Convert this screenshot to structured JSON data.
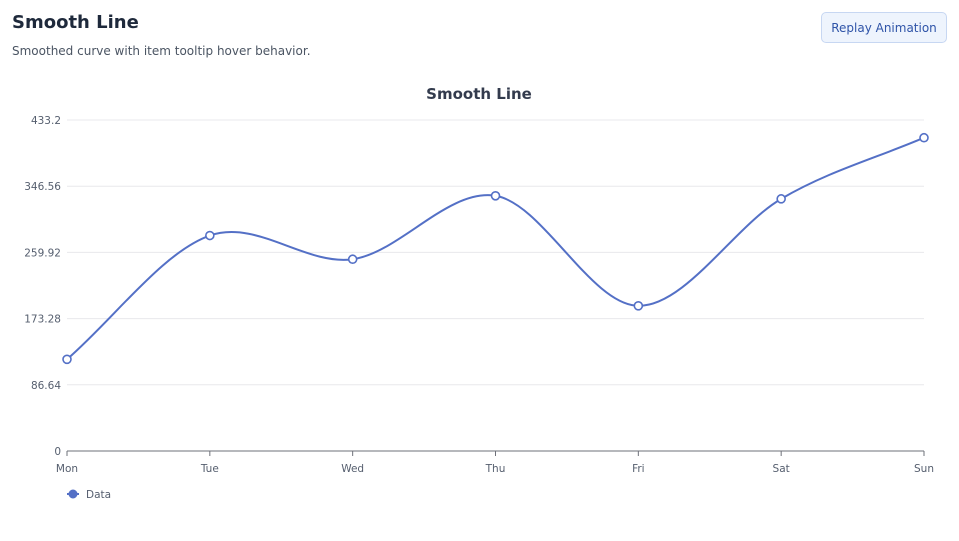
{
  "header": {
    "title": "Smooth Line",
    "subtitle": "Smoothed curve with item tooltip hover behavior.",
    "replay_label": "Replay Animation"
  },
  "colors": {
    "series": "#5470c6",
    "axis": "#6e7079",
    "grid": "#e8e8ec"
  },
  "chart_data": {
    "type": "line",
    "smooth": true,
    "title": "Smooth Line",
    "categories": [
      "Mon",
      "Tue",
      "Wed",
      "Thu",
      "Fri",
      "Sat",
      "Sun"
    ],
    "series": [
      {
        "name": "Data",
        "values": [
          120,
          282,
          251,
          334,
          190,
          330,
          410
        ]
      }
    ],
    "ylim": [
      0,
      433.2
    ],
    "yticks": [
      "0",
      "86.64",
      "173.28",
      "259.92",
      "346.56",
      "433.2"
    ],
    "xlabel": "",
    "ylabel": "",
    "grid": true,
    "legend_position": "bottom-left"
  }
}
